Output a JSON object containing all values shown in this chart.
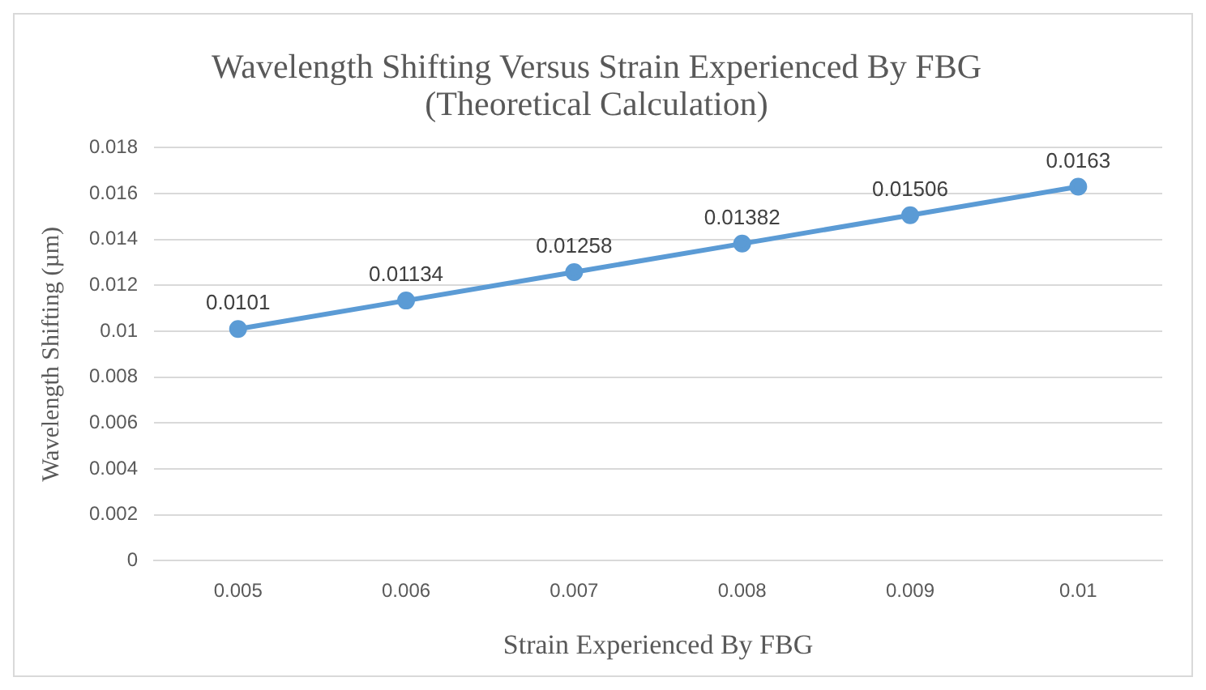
{
  "chart_data": {
    "type": "line",
    "title": "Wavelength Shifting Versus Strain Experienced By FBG\n(Theoretical Calculation)",
    "xlabel": "Strain Experienced By FBG",
    "ylabel": "Wavelength Shifting (µm)",
    "categories": [
      "0.005",
      "0.006",
      "0.007",
      "0.008",
      "0.009",
      "0.01"
    ],
    "series": [
      {
        "color": "#5b9bd5",
        "values": [
          0.0101,
          0.01134,
          0.01258,
          0.01382,
          0.01506,
          0.0163
        ]
      }
    ],
    "ylim": [
      0,
      0.018
    ],
    "yticks": [
      0,
      0.002,
      0.004,
      0.006,
      0.008,
      0.01,
      0.012,
      0.014,
      0.016,
      0.018
    ],
    "grid": "y",
    "legend": false,
    "marker": "circle",
    "line_style": "solid",
    "data_labels": true
  }
}
